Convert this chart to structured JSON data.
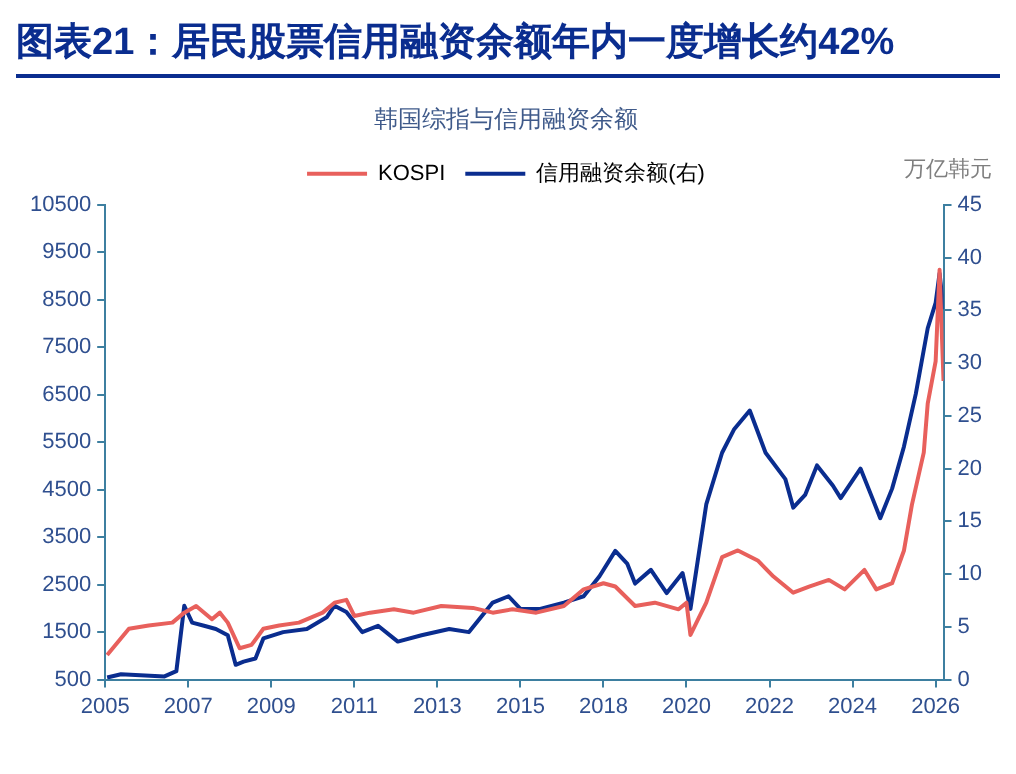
{
  "chart_data": {
    "type": "line",
    "title": "图表21：居民股票信用融资余额年内一度增长约42%",
    "subtitle": "韩国综指与信用融资余额",
    "y2label": "万亿韩元",
    "legend": "top",
    "grid": false,
    "marker": "none",
    "line_style": "solid",
    "xlim": [
      2005,
      2026.2
    ],
    "xticks": [
      {
        "value": 2005,
        "label": "2005"
      },
      {
        "value": 2007.1,
        "label": "2007"
      },
      {
        "value": 2009.2,
        "label": "2009"
      },
      {
        "value": 2011.3,
        "label": "2011"
      },
      {
        "value": 2013.4,
        "label": "2013"
      },
      {
        "value": 2015.5,
        "label": "2015"
      },
      {
        "value": 2017.6,
        "label": "2018"
      },
      {
        "value": 2019.7,
        "label": "2020"
      },
      {
        "value": 2021.8,
        "label": "2022"
      },
      {
        "value": 2023.9,
        "label": "2024"
      },
      {
        "value": 2026,
        "label": "2026"
      }
    ],
    "ylim": [
      500,
      10500
    ],
    "yticks": [
      500,
      1500,
      2500,
      3500,
      4500,
      5500,
      6500,
      7500,
      8500,
      9500,
      10500
    ],
    "y2lim": [
      0,
      45
    ],
    "y2ticks": [
      0,
      5,
      10,
      15,
      20,
      25,
      30,
      35,
      40,
      45
    ],
    "series": [
      {
        "name": "KOSPI",
        "color": "#e8605c",
        "x": [
          2005.05,
          2005.6,
          2006.1,
          2006.7,
          2007.0,
          2007.3,
          2007.7,
          2007.9,
          2008.1,
          2008.4,
          2008.7,
          2009.0,
          2009.4,
          2009.9,
          2010.5,
          2010.8,
          2011.1,
          2011.3,
          2011.7,
          2012.3,
          2012.8,
          2013.5,
          2014.3,
          2014.8,
          2015.3,
          2015.9,
          2016.6,
          2017.1,
          2017.6,
          2017.9,
          2018.4,
          2018.9,
          2019.5,
          2019.7,
          2019.8,
          2020.2,
          2020.6,
          2021.0,
          2021.5,
          2021.9,
          2022.4,
          2022.8,
          2023.3,
          2023.7,
          2024.2,
          2024.5,
          2024.9,
          2025.2,
          2025.4,
          2025.7,
          2025.8,
          2026.0,
          2026.1,
          2026.2
        ],
        "values": [
          1020,
          1570,
          1640,
          1700,
          1910,
          2050,
          1770,
          1910,
          1700,
          1160,
          1230,
          1570,
          1640,
          1700,
          1910,
          2120,
          2180,
          1840,
          1910,
          1980,
          1910,
          2050,
          2010,
          1910,
          1980,
          1910,
          2050,
          2400,
          2530,
          2460,
          2050,
          2120,
          1980,
          2120,
          1440,
          2120,
          3080,
          3220,
          3010,
          2670,
          2330,
          2460,
          2600,
          2400,
          2810,
          2400,
          2530,
          3220,
          4180,
          5280,
          6310,
          7200,
          9130,
          6790
        ]
      },
      {
        "name": "信用融资余额(右)",
        "color": "#0a2d8f",
        "axis": "y2",
        "x": [
          2005.05,
          2005.4,
          2006.5,
          2006.8,
          2007.0,
          2007.2,
          2007.5,
          2007.8,
          2008.1,
          2008.3,
          2008.5,
          2008.8,
          2009.0,
          2009.5,
          2010.1,
          2010.6,
          2010.8,
          2011.1,
          2011.5,
          2011.9,
          2012.4,
          2013.0,
          2013.7,
          2014.2,
          2014.8,
          2015.2,
          2015.5,
          2016.0,
          2016.6,
          2017.1,
          2017.5,
          2017.9,
          2018.2,
          2018.4,
          2018.8,
          2019.2,
          2019.6,
          2019.8,
          2020.2,
          2020.6,
          2020.9,
          2021.3,
          2021.7,
          2022.2,
          2022.4,
          2022.7,
          2023.0,
          2023.4,
          2023.6,
          2024.1,
          2024.4,
          2024.6,
          2024.9,
          2025.2,
          2025.5,
          2025.8,
          2026.0,
          2026.1,
          2026.2
        ],
        "values": [
          0.2,
          0.5,
          0.3,
          0.8,
          7.0,
          5.4,
          5.1,
          4.8,
          4.2,
          1.4,
          1.7,
          2.0,
          3.9,
          4.5,
          4.8,
          5.9,
          7.0,
          6.4,
          4.5,
          5.1,
          3.6,
          4.2,
          4.8,
          4.5,
          7.3,
          7.9,
          6.7,
          6.7,
          7.3,
          7.9,
          9.8,
          12.2,
          11.0,
          9.1,
          10.4,
          8.2,
          10.1,
          6.7,
          16.6,
          21.5,
          23.7,
          25.5,
          21.5,
          19.0,
          16.3,
          17.5,
          20.3,
          18.4,
          17.2,
          20.0,
          17.2,
          15.3,
          18.1,
          22.1,
          27.1,
          33.3,
          35.7,
          38.5,
          35.1
        ]
      }
    ]
  }
}
